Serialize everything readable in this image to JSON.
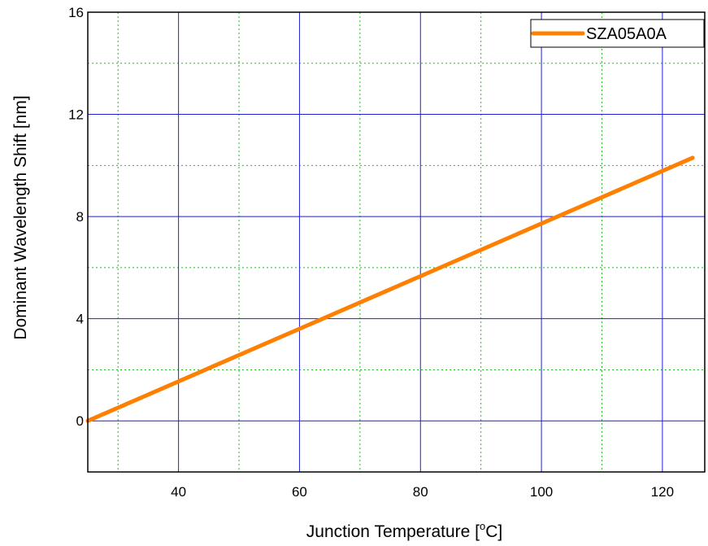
{
  "chart_data": {
    "type": "line",
    "title": "",
    "xlabel_main": "Junction Temperature [",
    "xlabel_sup": "o",
    "xlabel_end": "C]",
    "ylabel": "Dominant Wavelength Shift [nm]",
    "xlim": [
      25,
      127
    ],
    "ylim": [
      -2,
      16
    ],
    "x_major_ticks": [
      40,
      60,
      80,
      100,
      120
    ],
    "x_minor_ticks": [
      30,
      50,
      70,
      90,
      110
    ],
    "y_major_ticks": [
      0,
      4,
      8,
      12,
      16
    ],
    "y_minor_ticks": [
      -2,
      2,
      6,
      10,
      14
    ],
    "grid": true,
    "legend_position": "top-right",
    "series": [
      {
        "name": "SZA05A0A",
        "color": "#ff8000",
        "x": [
          25,
          125
        ],
        "y": [
          0,
          10.3
        ]
      }
    ],
    "colors": {
      "major_grid": "#1f1fd6",
      "minor_grid": "#22bb22",
      "axis": "#000000"
    }
  }
}
